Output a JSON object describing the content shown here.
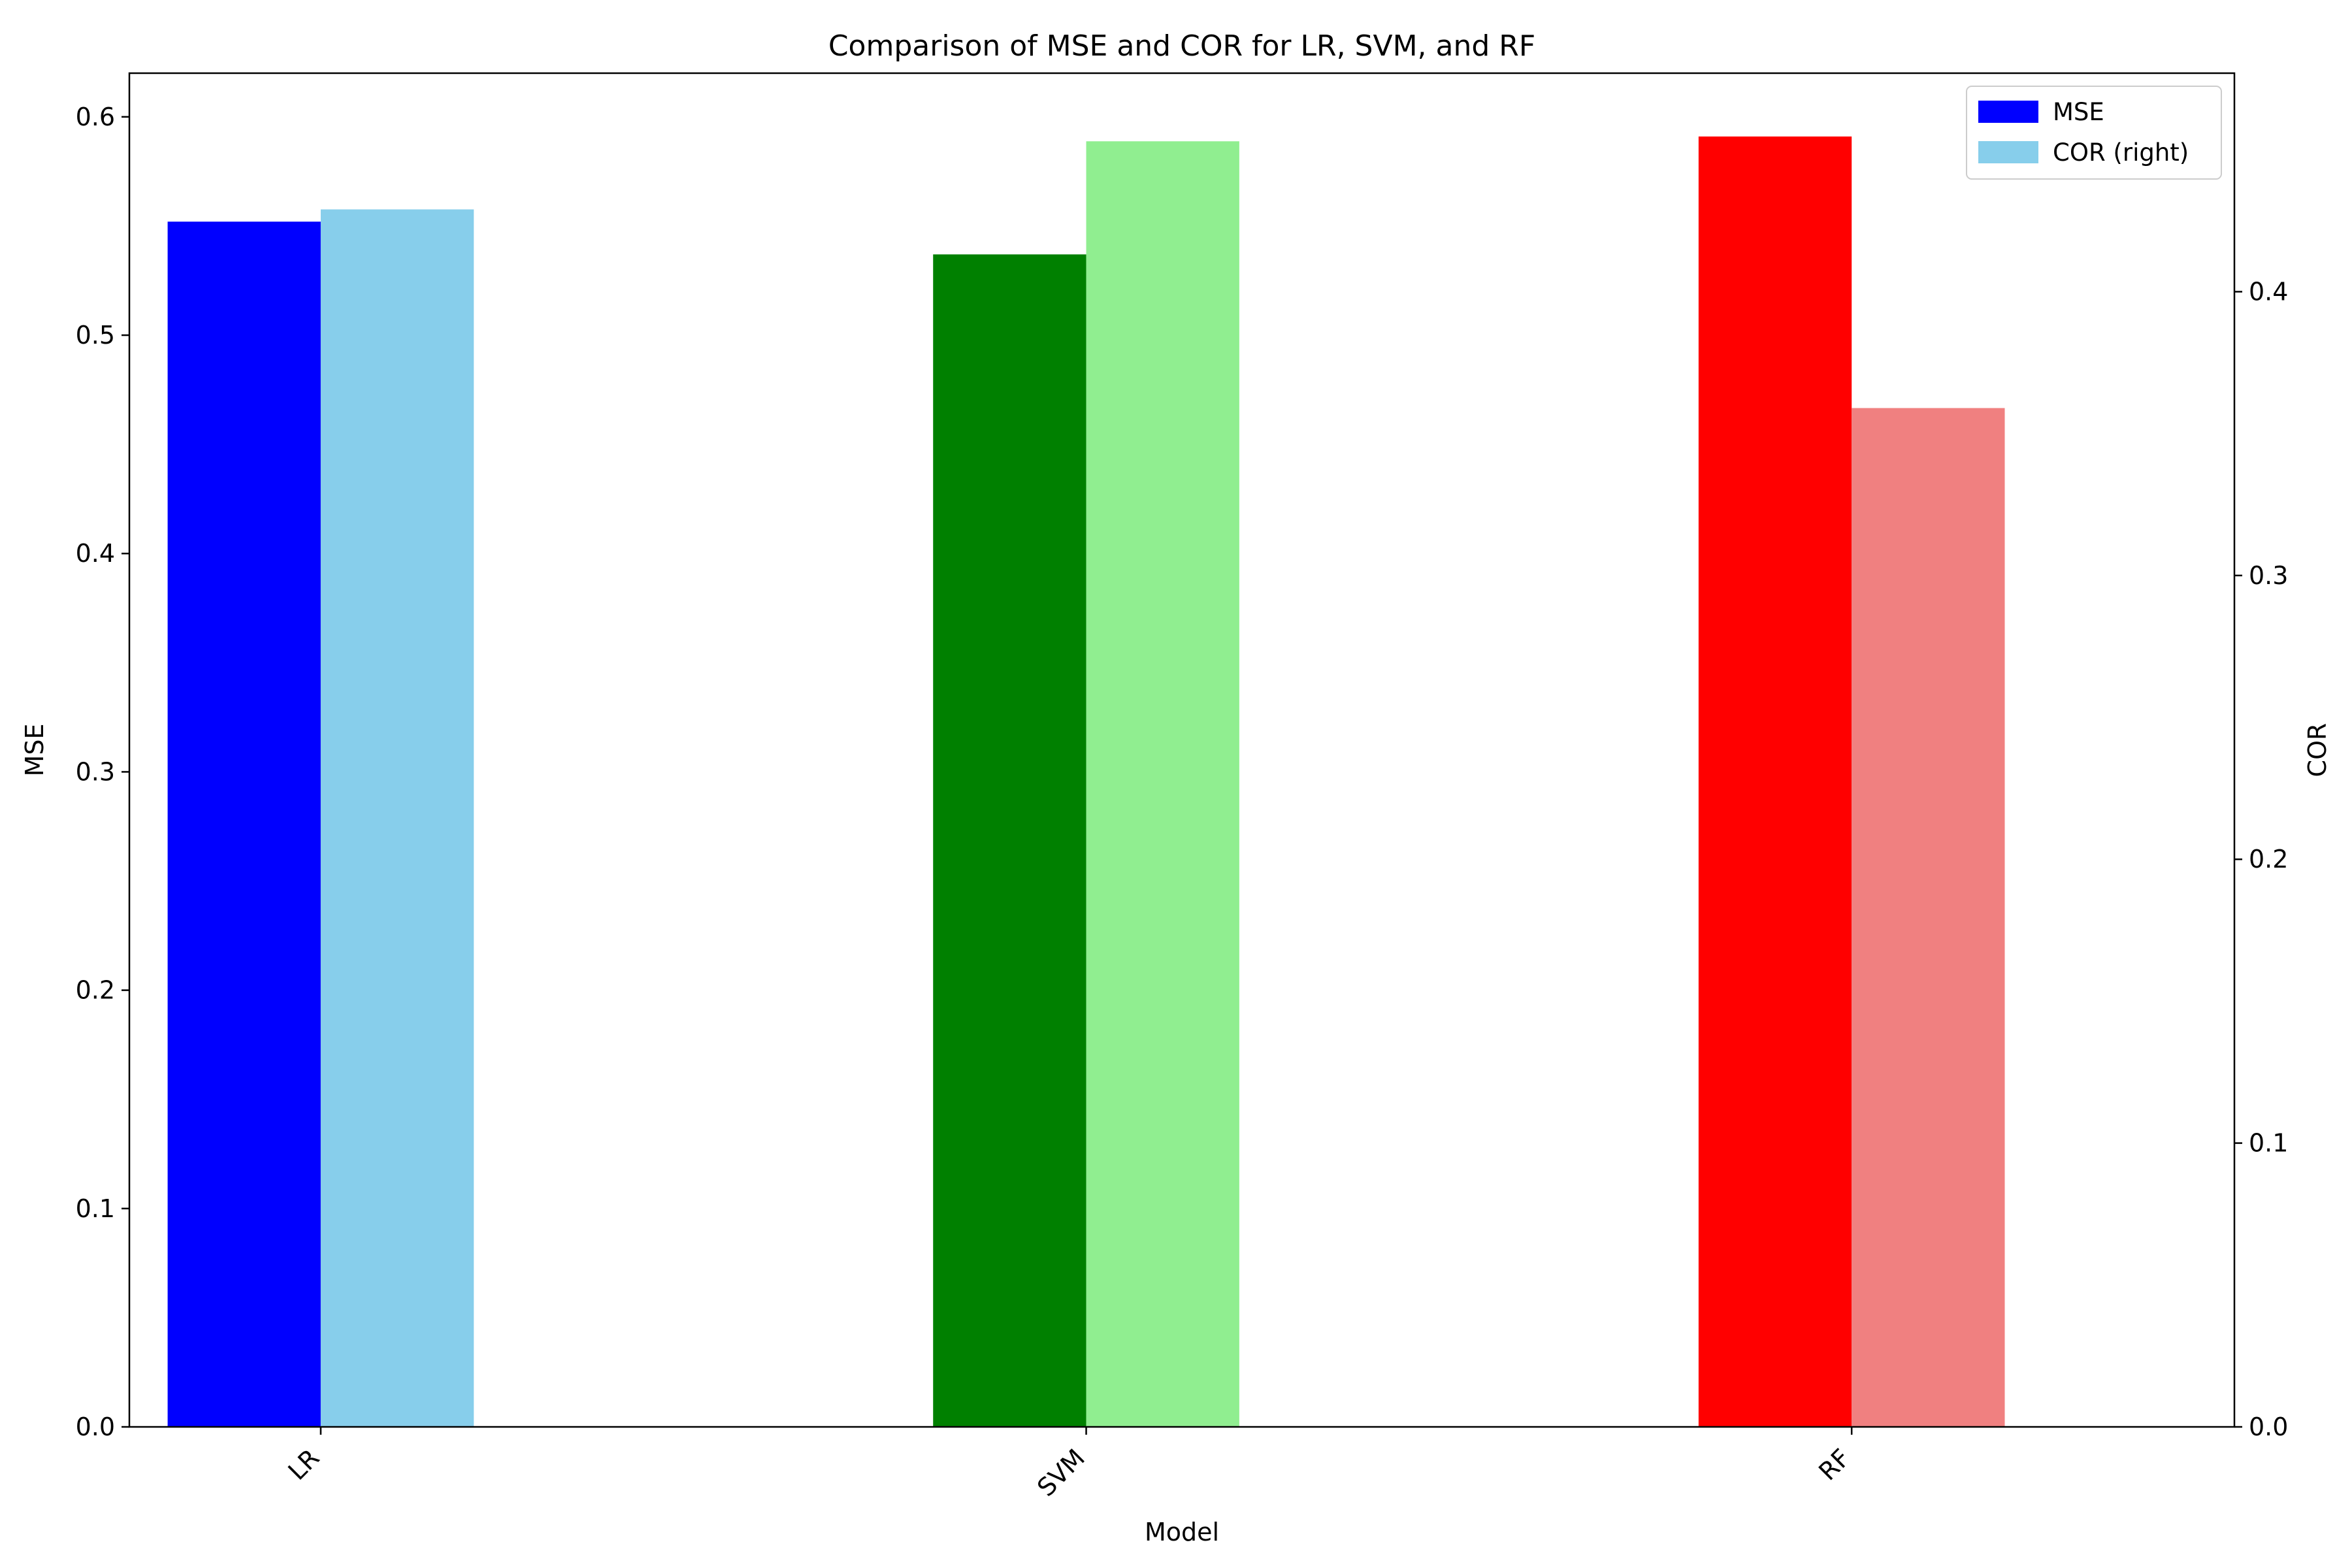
{
  "chart_data": {
    "type": "bar",
    "title": "Comparison of MSE and COR for LR, SVM, and RF",
    "xlabel": "Model",
    "ylabel_left": "MSE",
    "ylabel_right": "COR",
    "categories": [
      "LR",
      "SVM",
      "RF"
    ],
    "series": [
      {
        "name": "MSE",
        "axis": "left",
        "values": [
          0.552,
          0.537,
          0.591
        ],
        "colors": [
          "#0000ff",
          "#008000",
          "#ff0000"
        ],
        "legend_color": "#0000ff"
      },
      {
        "name": "COR (right)",
        "axis": "right",
        "values": [
          0.429,
          0.453,
          0.359
        ],
        "colors": [
          "#87ceeb",
          "#90ee90",
          "#f08080"
        ],
        "legend_color": "#87ceeb"
      }
    ],
    "ylim_left": [
      0,
      0.62
    ],
    "ylim_right": [
      0,
      0.477
    ],
    "yticks_left": [
      "0.0",
      "0.1",
      "0.2",
      "0.3",
      "0.4",
      "0.5",
      "0.6"
    ],
    "yticks_right": [
      "0.0",
      "0.1",
      "0.2",
      "0.3",
      "0.4"
    ],
    "grid": false,
    "legend_position": "top-right",
    "xtick_rotation": "45 degrees"
  }
}
